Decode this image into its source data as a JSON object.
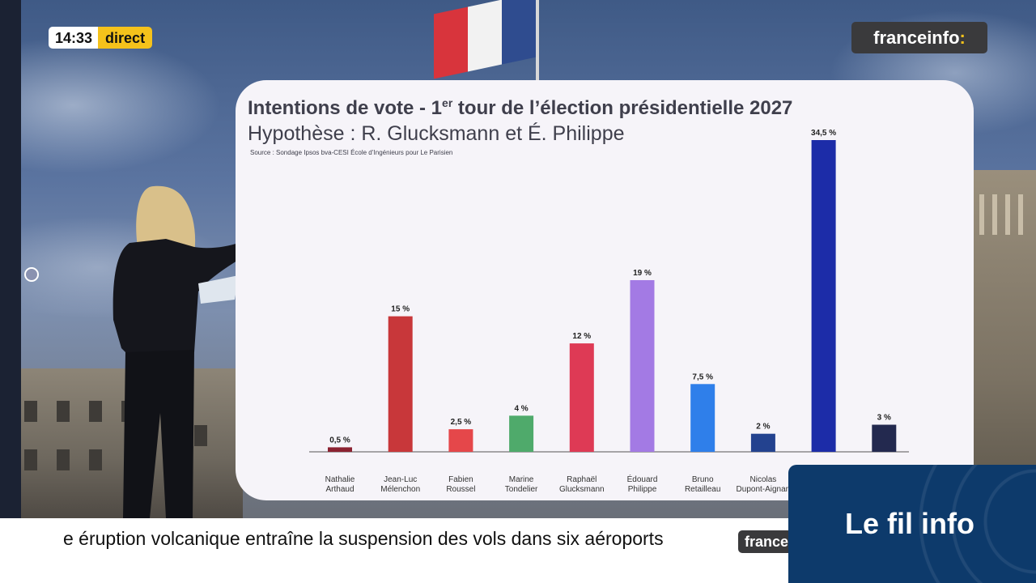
{
  "overlay": {
    "time": "14:33",
    "live_label": "direct",
    "brand": "franceinfo",
    "brand_colon": ":"
  },
  "ticker": {
    "text": "e éruption volcanique entraîne la suspension des vols dans six aéroports",
    "logo": "franceinfo",
    "section_label": "Le fil info"
  },
  "colors": {
    "accent_yellow": "#f5c21b",
    "brand_dark": "#3a3a3c",
    "section_blue": "#0d3a6b"
  },
  "chart_data": {
    "type": "bar",
    "title_main": "Intentions de vote - 1",
    "title_sup": "er",
    "title_rest": " tour de l’élection présidentielle 2027",
    "subtitle": "Hypothèse : R. Glucksmann et É. Philippe",
    "source": "Source : Sondage Ipsos bva-CESI École d’Ingénieurs pour Le Parisien",
    "xlabel": "",
    "ylabel": "",
    "ylim": [
      0,
      34.5
    ],
    "grid": false,
    "legend": "none",
    "categories": [
      [
        "Nathalie",
        "Arthaud"
      ],
      [
        "Jean-Luc",
        "Mélenchon"
      ],
      [
        "Fabien",
        "Roussel"
      ],
      [
        "Marine",
        "Tondelier"
      ],
      [
        "Raphaël",
        "Glucksmann"
      ],
      [
        "Édouard",
        "Philippe"
      ],
      [
        "Bruno",
        "Retailleau"
      ],
      [
        "Nicolas",
        "Dupont-Aignan"
      ],
      [
        "",
        ""
      ],
      [
        "",
        ""
      ]
    ],
    "values": [
      0.5,
      15,
      2.5,
      4,
      12,
      19,
      7.5,
      2,
      34.5,
      3
    ],
    "value_labels": [
      "0,5 %",
      "15 %",
      "2,5 %",
      "4 %",
      "12 %",
      "19 %",
      "7,5 %",
      "2 %",
      "34,5 %",
      "3 %"
    ],
    "bar_colors": [
      "#8b2231",
      "#c8373a",
      "#e5474a",
      "#4faa6b",
      "#de3a55",
      "#a37ae4",
      "#2f7fea",
      "#23428f",
      "#1c2ca8",
      "#23294f"
    ]
  }
}
